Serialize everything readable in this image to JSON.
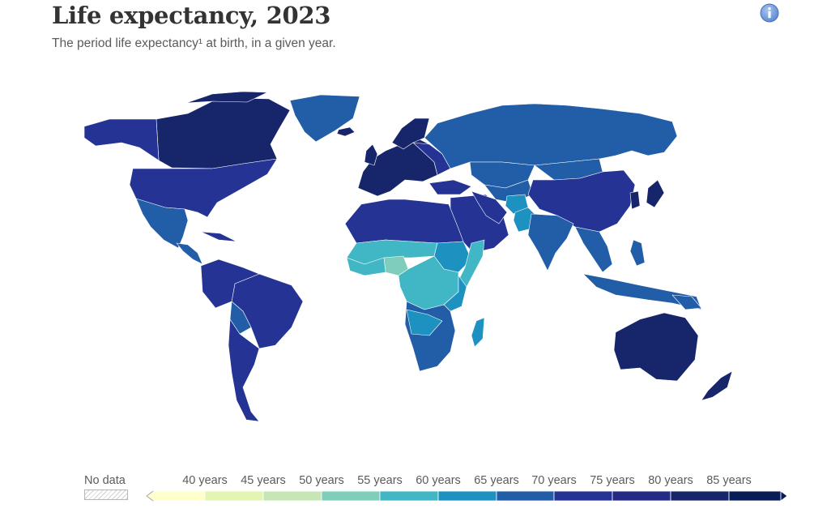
{
  "header": {
    "title": "Life expectancy, 2023",
    "subtitle": "The period life expectancy¹ at birth, in a given year."
  },
  "legend": {
    "no_data_label": "No data",
    "bins": [
      {
        "label": "40 years",
        "color": "#ffffcc"
      },
      {
        "label": "45 years",
        "color": "#e4f4b2"
      },
      {
        "label": "50 years",
        "color": "#c6e7b5"
      },
      {
        "label": "55 years",
        "color": "#7fcdbb"
      },
      {
        "label": "60 years",
        "color": "#41b6c4"
      },
      {
        "label": "65 years",
        "color": "#1d91c0"
      },
      {
        "label": "70 years",
        "color": "#225ea8"
      },
      {
        "label": "75 years",
        "color": "#253494"
      },
      {
        "label": "80 years",
        "color": "#252a84"
      },
      {
        "label": "85 years",
        "color": "#17256b"
      }
    ],
    "overflow_color": "#081d58"
  },
  "icons": {
    "info": "info-icon"
  },
  "colors": {
    "above_85": "#17256b",
    "r80_85": "#252a84",
    "r75_80": "#253494",
    "r70_75": "#225ea8",
    "r65_70": "#1d91c0",
    "r60_65": "#41b6c4",
    "r55_60": "#7fcdbb",
    "land_border": "#ffffff"
  }
}
